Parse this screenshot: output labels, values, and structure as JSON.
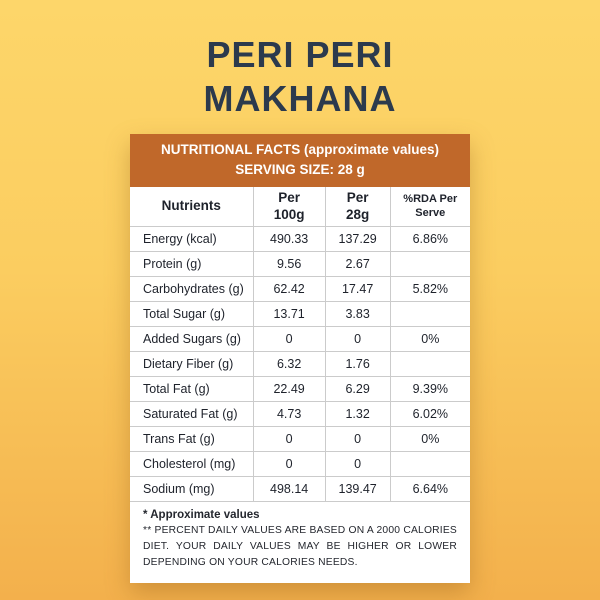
{
  "product": {
    "title_line1": "PERI PERI",
    "title_line2": "MAKHANA"
  },
  "label_header": {
    "line1": "NUTRITIONAL FACTS (approximate values)",
    "line2": "SERVING SIZE: 28 g"
  },
  "table": {
    "headers": {
      "nutrients": "Nutrients",
      "per100_line1": "Per",
      "per100_line2": "100g",
      "per28_line1": "Per",
      "per28_line2": "28g",
      "rda": "%RDA Per Serve"
    },
    "rows": [
      {
        "name": "Energy (kcal)",
        "per100": "490.33",
        "per28": "137.29",
        "rda": "6.86%"
      },
      {
        "name": "Protein (g)",
        "per100": "9.56",
        "per28": "2.67",
        "rda": ""
      },
      {
        "name": "Carbohydrates (g)",
        "per100": "62.42",
        "per28": "17.47",
        "rda": "5.82%"
      },
      {
        "name": "Total Sugar (g)",
        "per100": "13.71",
        "per28": "3.83",
        "rda": ""
      },
      {
        "name": "Added Sugars (g)",
        "per100": "0",
        "per28": "0",
        "rda": "0%"
      },
      {
        "name": "Dietary Fiber (g)",
        "per100": "6.32",
        "per28": "1.76",
        "rda": ""
      },
      {
        "name": "Total Fat (g)",
        "per100": "22.49",
        "per28": "6.29",
        "rda": "9.39%"
      },
      {
        "name": "Saturated Fat (g)",
        "per100": "4.73",
        "per28": "1.32",
        "rda": "6.02%"
      },
      {
        "name": "Trans Fat (g)",
        "per100": "0",
        "per28": "0",
        "rda": "0%"
      },
      {
        "name": "Cholesterol (mg)",
        "per100": "0",
        "per28": "0",
        "rda": ""
      },
      {
        "name": "Sodium (mg)",
        "per100": "498.14",
        "per28": "139.47",
        "rda": "6.64%"
      }
    ]
  },
  "footnotes": {
    "note1": "* Approximate values",
    "note2": "** PERCENT DAILY VALUES ARE BASED ON A 2000 CALORIES DIET. YOUR DAILY VALUES MAY BE HIGHER OR LOWER DEPENDING ON YOUR CALORIES NEEDS."
  },
  "colors": {
    "background_top": "#FDD66A",
    "background_bottom": "#F3B04C",
    "header_orange": "#C0682A",
    "title_navy": "#2C3A4D",
    "card_white": "#FFFFFF",
    "grid_gray": "#CBCBCB",
    "text_dark": "#1E222B"
  }
}
